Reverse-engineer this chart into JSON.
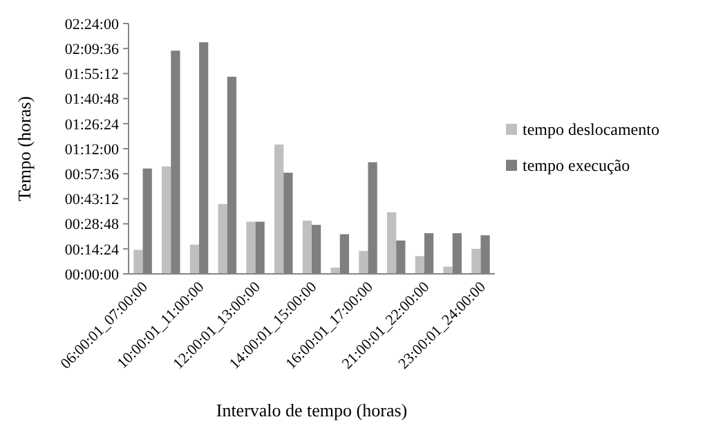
{
  "chart_data": {
    "type": "bar",
    "xlabel": "Intervalo de tempo (horas)",
    "ylabel": "Tempo (horas)",
    "categories": [
      "06:00:01_07:00:00",
      null,
      "10:00:01_11:00:00",
      null,
      "12:00:01_13:00:00",
      null,
      "14:00:01_15:00:00",
      null,
      "16:00:01_17:00:00",
      null,
      "21:00:01_22:00:00",
      null,
      "23:00:01_24:00:00"
    ],
    "series": [
      {
        "name": "tempo deslocamento",
        "color": "#bfbfbf",
        "values": [
          0.23,
          1.03,
          0.28,
          0.67,
          0.5,
          1.24,
          0.51,
          0.06,
          0.22,
          0.59,
          0.17,
          0.07,
          0.24
        ]
      },
      {
        "name": "tempo execução",
        "color": "#7f7f7f",
        "values": [
          1.01,
          2.14,
          2.22,
          1.89,
          0.5,
          0.97,
          0.47,
          0.38,
          1.07,
          0.32,
          0.39,
          0.39,
          0.37
        ]
      }
    ],
    "ylim": [
      0,
      2.4
    ],
    "yticks": [
      {
        "value": 0,
        "label": "00:00:00"
      },
      {
        "value": 0.24,
        "label": "00:14:24"
      },
      {
        "value": 0.48,
        "label": "00:28:48"
      },
      {
        "value": 0.72,
        "label": "00:43:12"
      },
      {
        "value": 0.96,
        "label": "00:57:36"
      },
      {
        "value": 1.2,
        "label": "01:12:00"
      },
      {
        "value": 1.44,
        "label": "01:26:24"
      },
      {
        "value": 1.68,
        "label": "01:40:48"
      },
      {
        "value": 1.92,
        "label": "01:55:12"
      },
      {
        "value": 2.16,
        "label": "02:09:36"
      },
      {
        "value": 2.4,
        "label": "02:24:00"
      }
    ],
    "grid": false,
    "legend": "right"
  }
}
